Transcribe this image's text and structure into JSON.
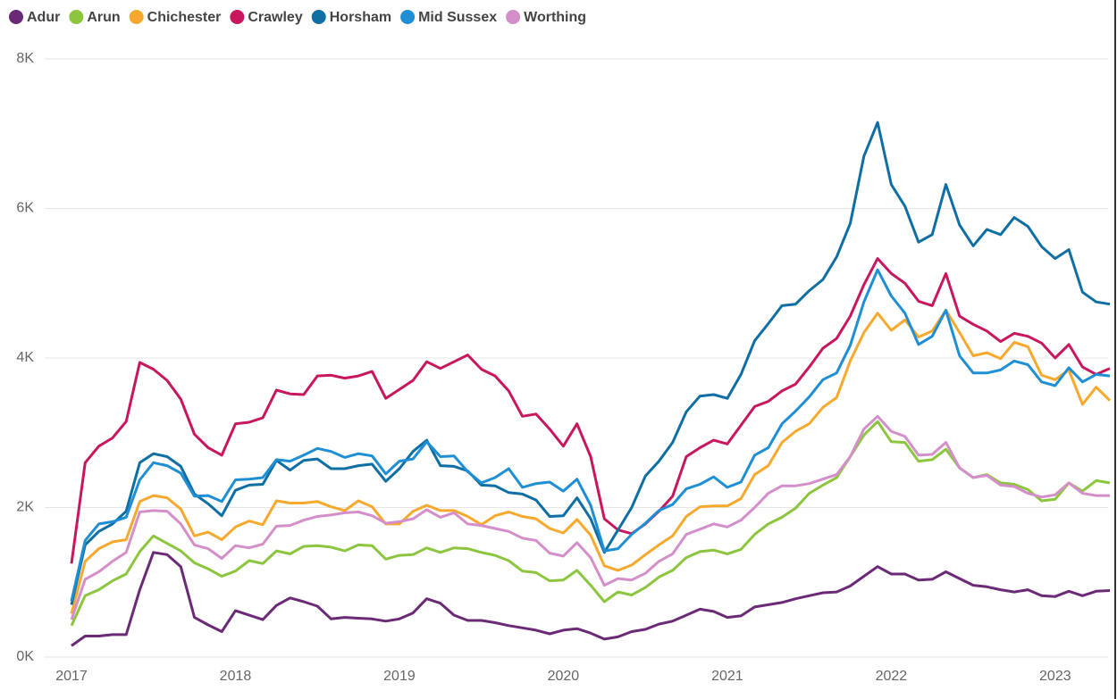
{
  "chart_data": {
    "type": "line",
    "categories": [
      "2017",
      null,
      null,
      null,
      null,
      null,
      null,
      null,
      null,
      null,
      null,
      null,
      "2018",
      null,
      null,
      null,
      null,
      null,
      null,
      null,
      null,
      null,
      null,
      null,
      "2019",
      null,
      null,
      null,
      null,
      null,
      null,
      null,
      null,
      null,
      null,
      null,
      "2020",
      null,
      null,
      null,
      null,
      null,
      null,
      null,
      null,
      null,
      null,
      null,
      "2021",
      null,
      null,
      null,
      null,
      null,
      null,
      null,
      null,
      null,
      null,
      null,
      "2022",
      null,
      null,
      null,
      null,
      null,
      null,
      null,
      null,
      null,
      null,
      null,
      "2023",
      null,
      null,
      null,
      null
    ],
    "ylim": [
      0,
      8000
    ],
    "yticks": [
      {
        "value": 0,
        "label": "0K"
      },
      {
        "value": 2000,
        "label": "2K"
      },
      {
        "value": 4000,
        "label": "4K"
      },
      {
        "value": 6000,
        "label": "6K"
      },
      {
        "value": 8000,
        "label": "8K"
      }
    ],
    "grid": true,
    "legend": "top-left",
    "series": [
      {
        "name": "Adur",
        "color": "#6b2a76",
        "values": [
          150,
          280,
          280,
          300,
          300,
          900,
          1400,
          1370,
          1210,
          530,
          430,
          340,
          620,
          560,
          500,
          690,
          790,
          740,
          680,
          510,
          530,
          520,
          510,
          480,
          510,
          590,
          780,
          720,
          560,
          490,
          490,
          460,
          420,
          390,
          360,
          310,
          360,
          380,
          320,
          240,
          270,
          340,
          370,
          440,
          480,
          560,
          640,
          610,
          530,
          550,
          670,
          700,
          730,
          780,
          820,
          860,
          870,
          950,
          1080,
          1210,
          1110,
          1110,
          1030,
          1040,
          1140,
          1050,
          960,
          940,
          900,
          870,
          900,
          820,
          810,
          880,
          820,
          880,
          890
        ]
      },
      {
        "name": "Arun",
        "color": "#8cc63f",
        "values": [
          420,
          820,
          900,
          1020,
          1110,
          1410,
          1620,
          1520,
          1420,
          1260,
          1180,
          1080,
          1150,
          1290,
          1250,
          1420,
          1380,
          1480,
          1490,
          1470,
          1420,
          1500,
          1490,
          1310,
          1360,
          1370,
          1460,
          1400,
          1460,
          1450,
          1400,
          1360,
          1290,
          1150,
          1130,
          1020,
          1030,
          1160,
          960,
          740,
          870,
          830,
          930,
          1070,
          1160,
          1330,
          1410,
          1430,
          1380,
          1440,
          1640,
          1780,
          1870,
          1990,
          2190,
          2300,
          2400,
          2680,
          2970,
          3150,
          2880,
          2870,
          2620,
          2640,
          2780,
          2530,
          2400,
          2440,
          2330,
          2310,
          2240,
          2090,
          2110,
          2330,
          2220,
          2360,
          2330
        ]
      },
      {
        "name": "Chichester",
        "color": "#f7a92d",
        "values": [
          580,
          1280,
          1450,
          1540,
          1570,
          2080,
          2160,
          2130,
          1980,
          1620,
          1670,
          1570,
          1740,
          1820,
          1770,
          2090,
          2060,
          2060,
          2080,
          2010,
          1960,
          2090,
          2010,
          1780,
          1780,
          1950,
          2030,
          1960,
          1960,
          1880,
          1770,
          1890,
          1940,
          1880,
          1850,
          1720,
          1660,
          1840,
          1630,
          1220,
          1160,
          1230,
          1370,
          1500,
          1620,
          1880,
          2010,
          2020,
          2020,
          2120,
          2440,
          2560,
          2870,
          3020,
          3120,
          3340,
          3470,
          3960,
          4340,
          4600,
          4370,
          4510,
          4280,
          4360,
          4640,
          4340,
          4030,
          4070,
          3990,
          4210,
          4150,
          3770,
          3710,
          3840,
          3380,
          3610,
          3430
        ]
      },
      {
        "name": "Crawley",
        "color": "#c8175e",
        "values": [
          1250,
          2600,
          2820,
          2930,
          3150,
          3940,
          3850,
          3700,
          3450,
          2980,
          2800,
          2700,
          3120,
          3140,
          3200,
          3570,
          3520,
          3510,
          3760,
          3770,
          3730,
          3760,
          3820,
          3460,
          3580,
          3700,
          3950,
          3860,
          3950,
          4040,
          3850,
          3760,
          3560,
          3220,
          3250,
          3050,
          2820,
          3120,
          2680,
          1850,
          1700,
          1650,
          1780,
          1950,
          2150,
          2680,
          2800,
          2900,
          2850,
          3100,
          3350,
          3420,
          3560,
          3650,
          3880,
          4130,
          4260,
          4560,
          4980,
          5330,
          5130,
          5000,
          4760,
          4700,
          5130,
          4560,
          4450,
          4360,
          4220,
          4330,
          4290,
          4200,
          4000,
          4180,
          3880,
          3780,
          3860
        ]
      },
      {
        "name": "Horsham",
        "color": "#0f6ea3",
        "values": [
          700,
          1500,
          1680,
          1780,
          1950,
          2600,
          2720,
          2680,
          2550,
          2180,
          2050,
          1890,
          2230,
          2300,
          2310,
          2630,
          2500,
          2630,
          2650,
          2520,
          2520,
          2560,
          2580,
          2350,
          2520,
          2750,
          2900,
          2560,
          2550,
          2490,
          2300,
          2290,
          2200,
          2180,
          2100,
          1880,
          1890,
          2130,
          1850,
          1400,
          1700,
          2000,
          2420,
          2620,
          2870,
          3280,
          3490,
          3510,
          3460,
          3780,
          4230,
          4460,
          4700,
          4720,
          4900,
          5050,
          5350,
          5800,
          6700,
          7150,
          6320,
          6030,
          5550,
          5650,
          6320,
          5780,
          5500,
          5720,
          5650,
          5880,
          5760,
          5490,
          5330,
          5450,
          4880,
          4750,
          4720
        ]
      },
      {
        "name": "Mid Sussex",
        "color": "#1e8fd5",
        "values": [
          750,
          1560,
          1780,
          1810,
          1870,
          2370,
          2600,
          2560,
          2460,
          2150,
          2160,
          2080,
          2370,
          2380,
          2400,
          2640,
          2620,
          2700,
          2790,
          2750,
          2670,
          2720,
          2690,
          2450,
          2620,
          2650,
          2880,
          2680,
          2690,
          2480,
          2330,
          2400,
          2520,
          2270,
          2320,
          2340,
          2220,
          2380,
          2030,
          1420,
          1450,
          1640,
          1790,
          1960,
          2040,
          2250,
          2310,
          2410,
          2270,
          2340,
          2700,
          2800,
          3120,
          3290,
          3480,
          3710,
          3800,
          4170,
          4750,
          5180,
          4830,
          4600,
          4180,
          4290,
          4640,
          4030,
          3800,
          3800,
          3840,
          3960,
          3910,
          3680,
          3630,
          3870,
          3680,
          3780,
          3760
        ]
      },
      {
        "name": "Worthing",
        "color": "#d48fca",
        "values": [
          500,
          1040,
          1140,
          1280,
          1400,
          1940,
          1960,
          1950,
          1780,
          1500,
          1450,
          1320,
          1490,
          1460,
          1510,
          1750,
          1760,
          1830,
          1880,
          1900,
          1930,
          1940,
          1890,
          1790,
          1810,
          1850,
          1970,
          1870,
          1930,
          1780,
          1760,
          1720,
          1680,
          1590,
          1560,
          1390,
          1350,
          1530,
          1330,
          960,
          1050,
          1030,
          1120,
          1280,
          1380,
          1640,
          1710,
          1780,
          1740,
          1830,
          2000,
          2190,
          2290,
          2290,
          2320,
          2380,
          2440,
          2680,
          3050,
          3220,
          3020,
          2950,
          2700,
          2710,
          2870,
          2530,
          2400,
          2430,
          2300,
          2280,
          2190,
          2140,
          2170,
          2330,
          2190,
          2160,
          2160
        ]
      }
    ]
  }
}
